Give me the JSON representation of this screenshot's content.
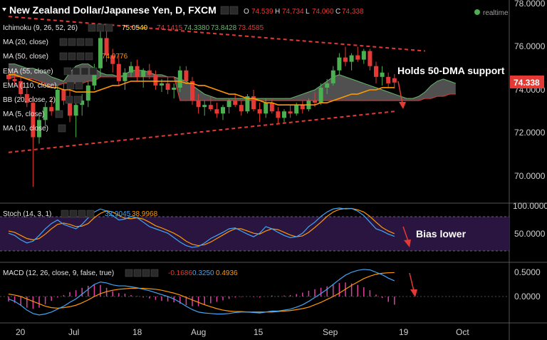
{
  "header": {
    "symbol": "New Zealand Dollar/Japanese Yen, D, FXCM",
    "ohlc": [
      {
        "k": "O",
        "v": "74.539"
      },
      {
        "k": "H",
        "v": "74.734"
      },
      {
        "k": "L",
        "v": "74.060"
      },
      {
        "k": "C",
        "v": "74.338"
      }
    ],
    "realtime": "realtime"
  },
  "indicators": [
    {
      "label": "Ichimoku (9, 26, 52, 26)",
      "values": [
        {
          "v": "75.0540",
          "color": "#ffeb3b"
        },
        {
          "v": "74.1415",
          "color": "#e53935"
        },
        {
          "v": "74.3380",
          "color": "#66bb6a"
        },
        {
          "v": "73.8428",
          "color": "#66bb6a"
        },
        {
          "v": "73.4585",
          "color": "#e53935"
        }
      ]
    },
    {
      "label": "MA (20, close)",
      "values": []
    },
    {
      "label": "MA (50, close)",
      "values": [
        {
          "v": "74.0776",
          "color": "#ff9800"
        }
      ]
    },
    {
      "label": "EMA (55, close)",
      "values": []
    },
    {
      "label": "EMA (110, close)",
      "values": []
    },
    {
      "label": "BB (20, close, 2)",
      "values": []
    },
    {
      "label": "MA (5, close)",
      "values": []
    },
    {
      "label": "MA (10, close)",
      "values": []
    }
  ],
  "price_axis": {
    "ticks": [
      "78.0000",
      "76.0000",
      "74.0000",
      "72.0000",
      "70.0000"
    ],
    "current": "74.338"
  },
  "annotations": {
    "main": "Holds 50-DMA support",
    "stoch": "Bias lower"
  },
  "stoch": {
    "label": "Stoch (14, 3, 1)",
    "values": [
      {
        "v": "32.9045",
        "color": "#42a5f5"
      },
      {
        "v": "38.9968",
        "color": "#ff9800"
      }
    ],
    "ticks": [
      "100.0000",
      "50.0000"
    ]
  },
  "macd": {
    "label": "MACD (12, 26, close, 9, false, true)",
    "values": [
      {
        "v": "-0.1686",
        "color": "#e53935"
      },
      {
        "v": "0.3250",
        "color": "#42a5f5"
      },
      {
        "v": "0.4936",
        "color": "#ff9800"
      }
    ],
    "ticks": [
      "0.5000",
      "0.0000"
    ]
  },
  "time_axis": [
    "20",
    "Jul",
    "18",
    "Aug",
    "15",
    "Sep",
    "19",
    "Oct"
  ],
  "colors": {
    "up": "#4caf50",
    "down": "#e53935",
    "ma50": "#ff9800",
    "cloud": "#6b6b6b",
    "stoch_band": "#2a1540",
    "k": "#42a5f5",
    "d": "#ff9800"
  },
  "chart_data": {
    "type": "candlestick",
    "title": "New Zealand Dollar/Japanese Yen, D, FXCM",
    "ylim": [
      69.0,
      78.0
    ],
    "last": {
      "open": 74.539,
      "high": 74.734,
      "low": 74.06,
      "close": 74.338
    },
    "candles": [
      [
        74.7,
        75.0,
        74.3,
        74.5
      ],
      [
        74.5,
        74.8,
        74.2,
        74.4
      ],
      [
        74.4,
        74.6,
        73.6,
        73.8
      ],
      [
        73.8,
        74.1,
        73.2,
        73.4
      ],
      [
        73.4,
        73.7,
        69.5,
        71.8
      ],
      [
        71.8,
        72.8,
        71.5,
        72.6
      ],
      [
        72.6,
        73.4,
        72.3,
        73.2
      ],
      [
        73.2,
        73.6,
        72.8,
        73.0
      ],
      [
        73.0,
        74.2,
        72.8,
        74.0
      ],
      [
        74.0,
        74.3,
        73.3,
        73.5
      ],
      [
        73.5,
        74.1,
        72.5,
        72.8
      ],
      [
        72.8,
        73.4,
        71.8,
        73.3
      ],
      [
        73.3,
        73.8,
        72.8,
        73.5
      ],
      [
        73.5,
        74.4,
        73.2,
        74.2
      ],
      [
        74.2,
        75.2,
        74.0,
        75.0
      ],
      [
        75.0,
        76.7,
        74.6,
        76.4
      ],
      [
        76.4,
        76.8,
        75.3,
        75.6
      ],
      [
        75.6,
        75.9,
        74.8,
        75.2
      ],
      [
        75.2,
        75.6,
        74.2,
        74.4
      ],
      [
        74.4,
        75.0,
        74.0,
        74.8
      ],
      [
        74.8,
        75.3,
        74.6,
        75.1
      ],
      [
        75.1,
        75.4,
        74.4,
        74.6
      ],
      [
        74.6,
        75.0,
        74.1,
        74.9
      ],
      [
        74.9,
        75.2,
        74.5,
        74.7
      ],
      [
        74.7,
        74.9,
        74.0,
        74.2
      ],
      [
        74.2,
        74.5,
        73.9,
        74.3
      ],
      [
        74.3,
        74.6,
        73.8,
        74.0
      ],
      [
        74.0,
        74.3,
        73.6,
        74.1
      ],
      [
        74.1,
        75.1,
        73.9,
        74.9
      ],
      [
        74.9,
        75.1,
        74.3,
        74.4
      ],
      [
        74.4,
        74.6,
        73.3,
        73.5
      ],
      [
        73.5,
        73.8,
        72.9,
        73.2
      ],
      [
        73.2,
        73.5,
        72.8,
        73.3
      ],
      [
        73.3,
        73.7,
        73.0,
        73.1
      ],
      [
        73.1,
        73.4,
        72.7,
        72.9
      ],
      [
        72.9,
        73.3,
        72.6,
        73.2
      ],
      [
        73.2,
        73.6,
        72.9,
        73.5
      ],
      [
        73.5,
        73.8,
        73.2,
        73.3
      ],
      [
        73.3,
        73.5,
        72.8,
        73.0
      ],
      [
        73.0,
        73.8,
        72.9,
        73.7
      ],
      [
        73.7,
        74.0,
        73.0,
        73.1
      ],
      [
        73.1,
        73.4,
        72.5,
        72.9
      ],
      [
        72.9,
        73.6,
        72.7,
        73.4
      ],
      [
        73.4,
        73.6,
        72.9,
        73.0
      ],
      [
        73.0,
        73.2,
        72.4,
        72.7
      ],
      [
        72.7,
        73.1,
        72.5,
        73.0
      ],
      [
        73.0,
        73.3,
        72.7,
        72.9
      ],
      [
        72.9,
        73.4,
        72.8,
        73.3
      ],
      [
        73.3,
        73.5,
        72.9,
        73.1
      ],
      [
        73.1,
        73.6,
        73.0,
        73.5
      ],
      [
        73.5,
        73.9,
        73.2,
        73.4
      ],
      [
        73.4,
        74.3,
        73.3,
        74.1
      ],
      [
        74.1,
        74.5,
        73.8,
        74.3
      ],
      [
        74.3,
        75.1,
        74.2,
        74.9
      ],
      [
        74.9,
        75.7,
        74.7,
        75.5
      ],
      [
        75.5,
        76.0,
        75.1,
        75.3
      ],
      [
        75.3,
        75.7,
        74.9,
        75.6
      ],
      [
        75.6,
        76.0,
        75.3,
        75.4
      ],
      [
        75.4,
        75.9,
        75.2,
        75.8
      ],
      [
        75.8,
        75.9,
        74.9,
        75.1
      ],
      [
        75.1,
        75.3,
        74.3,
        74.6
      ],
      [
        74.6,
        75.1,
        74.2,
        74.8
      ],
      [
        74.6,
        74.8,
        74.1,
        74.3
      ],
      [
        74.539,
        74.734,
        74.06,
        74.338
      ]
    ],
    "ma50": [
      74.7,
      74.7,
      74.6,
      74.5,
      74.4,
      74.3,
      74.2,
      74.1,
      74.1,
      74.0,
      74.0,
      73.9,
      73.9,
      73.9,
      73.9,
      74.0,
      74.1,
      74.2,
      74.2,
      74.3,
      74.4,
      74.4,
      74.4,
      74.4,
      74.4,
      74.4,
      74.4,
      74.4,
      74.4,
      74.3,
      74.3,
      74.2,
      74.2,
      74.1,
      74.0,
      73.9,
      73.8,
      73.8,
      73.7,
      73.6,
      73.6,
      73.5,
      73.4,
      73.4,
      73.3,
      73.3,
      73.3,
      73.3,
      73.3,
      73.3,
      73.3,
      73.4,
      73.4,
      73.5,
      73.6,
      73.7,
      73.8,
      73.8,
      73.9,
      74.0,
      74.0,
      74.1,
      74.1,
      74.1
    ],
    "cloud_top": [
      75.2,
      75.2,
      75.1,
      75.0,
      75.0,
      74.9,
      74.8,
      74.6,
      74.5,
      74.4,
      74.8,
      75.1,
      75.2,
      75.2,
      75.0,
      74.8,
      74.7,
      74.7,
      74.6,
      74.7,
      74.9,
      74.9,
      74.9,
      74.8,
      74.7,
      74.7,
      74.6,
      74.6,
      74.5,
      74.4,
      74.2,
      74.0,
      73.8,
      73.7,
      73.6,
      73.6,
      73.6,
      73.6,
      73.6,
      73.6,
      73.6,
      73.6,
      73.6,
      73.6,
      73.6,
      73.6,
      73.6,
      73.7,
      73.8,
      73.9,
      74.0,
      74.2,
      74.4,
      74.6,
      74.7,
      74.6,
      74.5,
      74.4,
      74.3,
      74.2,
      74.1,
      74.0,
      73.9,
      73.8,
      73.7,
      73.6,
      73.6,
      73.7,
      73.9,
      74.2,
      74.4,
      74.5,
      74.4,
      74.3
    ],
    "cloud_bottom": [
      74.5,
      74.6,
      74.6,
      74.5,
      74.5,
      74.4,
      74.3,
      74.2,
      74.2,
      74.3,
      74.3,
      74.3,
      74.3,
      74.4,
      74.4,
      74.6,
      74.6,
      74.6,
      74.6,
      74.6,
      74.6,
      74.6,
      74.6,
      74.6,
      74.6,
      74.6,
      74.6,
      74.6,
      73.5,
      73.5,
      73.5,
      73.5,
      73.5,
      73.5,
      73.5,
      73.5,
      73.5,
      73.5,
      73.5,
      73.5,
      73.5,
      73.5,
      73.5,
      73.5,
      73.5,
      73.5,
      73.5,
      73.5,
      73.5,
      73.5,
      73.5,
      73.5,
      73.5,
      73.5,
      73.5,
      73.5,
      73.5,
      73.5,
      73.5,
      73.5,
      73.5,
      73.5,
      73.5,
      73.5,
      73.5,
      73.5,
      73.5,
      73.5,
      73.6,
      73.6,
      73.7,
      73.7,
      73.8,
      73.8
    ],
    "trendlines": [
      {
        "color": "#e53935",
        "from": [
          0,
          71.1
        ],
        "to": [
          63,
          73.0
        ]
      },
      {
        "color": "#e53935",
        "from": [
          0,
          77.4
        ],
        "to": [
          68,
          75.8
        ]
      }
    ],
    "stoch_k": [
      40,
      35,
      25,
      18,
      22,
      35,
      50,
      62,
      70,
      60,
      55,
      50,
      60,
      75,
      88,
      95,
      90,
      80,
      70,
      72,
      78,
      75,
      65,
      55,
      50,
      45,
      40,
      30,
      20,
      12,
      8,
      10,
      18,
      28,
      35,
      42,
      50,
      52,
      45,
      38,
      32,
      40,
      55,
      50,
      42,
      35,
      30,
      32,
      40,
      55,
      65,
      78,
      88,
      95,
      97,
      95,
      96,
      90,
      80,
      65,
      50,
      45,
      38,
      33
    ],
    "stoch_d": [
      45,
      42,
      35,
      28,
      25,
      28,
      38,
      50,
      60,
      63,
      60,
      55,
      56,
      62,
      75,
      85,
      91,
      88,
      80,
      74,
      73,
      75,
      72,
      65,
      57,
      52,
      46,
      40,
      32,
      22,
      15,
      12,
      14,
      20,
      28,
      36,
      44,
      50,
      50,
      45,
      40,
      38,
      45,
      50,
      48,
      42,
      36,
      32,
      34,
      42,
      53,
      65,
      78,
      88,
      94,
      96,
      96,
      93,
      88,
      78,
      65,
      53,
      45,
      39
    ],
    "macd_line": [
      -0.05,
      -0.1,
      -0.18,
      -0.28,
      -0.35,
      -0.38,
      -0.36,
      -0.32,
      -0.26,
      -0.2,
      -0.12,
      -0.05,
      0.05,
      0.15,
      0.25,
      0.3,
      0.28,
      0.24,
      0.22,
      0.22,
      0.2,
      0.18,
      0.15,
      0.12,
      0.08,
      0.04,
      0.0,
      -0.05,
      -0.12,
      -0.2,
      -0.27,
      -0.32,
      -0.34,
      -0.35,
      -0.36,
      -0.36,
      -0.35,
      -0.33,
      -0.32,
      -0.32,
      -0.33,
      -0.34,
      -0.32,
      -0.3,
      -0.3,
      -0.28,
      -0.26,
      -0.22,
      -0.17,
      -0.1,
      -0.02,
      0.06,
      0.15,
      0.25,
      0.35,
      0.44,
      0.5,
      0.54,
      0.56,
      0.55,
      0.5,
      0.45,
      0.38,
      0.325
    ],
    "macd_signal": [
      0.05,
      0.03,
      0.0,
      -0.05,
      -0.1,
      -0.15,
      -0.2,
      -0.23,
      -0.24,
      -0.23,
      -0.21,
      -0.18,
      -0.13,
      -0.07,
      0.0,
      0.06,
      0.1,
      0.13,
      0.15,
      0.16,
      0.17,
      0.17,
      0.17,
      0.16,
      0.15,
      0.13,
      0.1,
      0.07,
      0.03,
      -0.02,
      -0.07,
      -0.12,
      -0.17,
      -0.21,
      -0.25,
      -0.28,
      -0.3,
      -0.31,
      -0.31,
      -0.32,
      -0.32,
      -0.32,
      -0.32,
      -0.32,
      -0.31,
      -0.3,
      -0.29,
      -0.27,
      -0.25,
      -0.22,
      -0.17,
      -0.12,
      -0.06,
      0.0,
      0.07,
      0.15,
      0.23,
      0.3,
      0.37,
      0.42,
      0.46,
      0.48,
      0.49,
      0.4936
    ],
    "macd_hist": [
      -0.1,
      -0.13,
      -0.18,
      -0.23,
      -0.25,
      -0.23,
      -0.16,
      -0.09,
      -0.02,
      0.03,
      0.09,
      0.13,
      0.18,
      0.22,
      0.25,
      0.24,
      0.18,
      0.11,
      0.07,
      0.06,
      0.03,
      0.01,
      -0.02,
      -0.04,
      -0.07,
      -0.09,
      -0.1,
      -0.12,
      -0.15,
      -0.18,
      -0.2,
      -0.2,
      -0.17,
      -0.14,
      -0.11,
      -0.08,
      -0.05,
      -0.02,
      -0.01,
      0.0,
      -0.01,
      -0.02,
      0.0,
      0.02,
      0.01,
      0.02,
      0.03,
      0.05,
      0.08,
      0.12,
      0.15,
      0.18,
      0.21,
      0.25,
      0.28,
      0.29,
      0.27,
      0.24,
      0.19,
      0.13,
      0.04,
      -0.03,
      -0.11,
      -0.1686
    ]
  }
}
